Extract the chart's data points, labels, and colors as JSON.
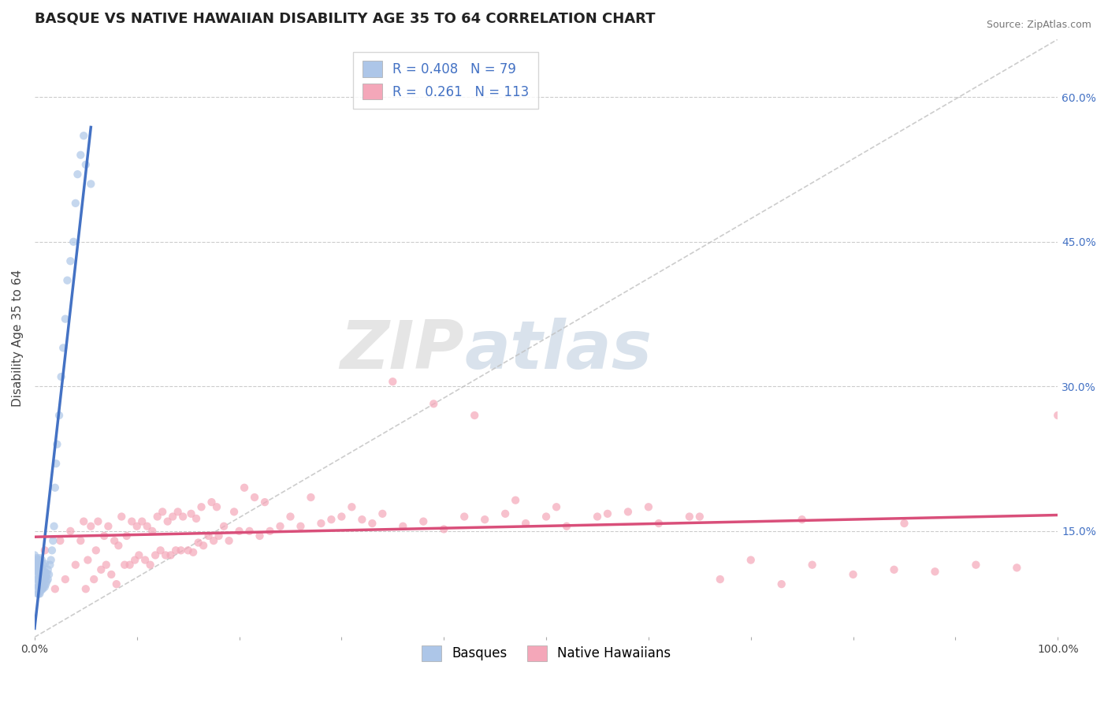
{
  "title": "BASQUE VS NATIVE HAWAIIAN DISABILITY AGE 35 TO 64 CORRELATION CHART",
  "source": "Source: ZipAtlas.com",
  "ylabel": "Disability Age 35 to 64",
  "xlim": [
    0,
    1.0
  ],
  "ylim": [
    0.04,
    0.66
  ],
  "ytick_positions": [
    0.15,
    0.3,
    0.45,
    0.6
  ],
  "ytick_labels": [
    "15.0%",
    "30.0%",
    "45.0%",
    "60.0%"
  ],
  "basque_R": 0.408,
  "basque_N": 79,
  "hawaiian_R": 0.261,
  "hawaiian_N": 113,
  "basque_color": "#adc6e8",
  "basque_line_color": "#4472c4",
  "hawaiian_color": "#f4a7b9",
  "hawaiian_line_color": "#d94f7a",
  "ref_line_color": "#c0c0c0",
  "background_color": "#ffffff",
  "grid_color": "#cccccc",
  "legend_label_blue": "Basques",
  "legend_label_pink": "Native Hawaiians",
  "watermark_zip": "ZIP",
  "watermark_atlas": "atlas",
  "title_fontsize": 13,
  "axis_label_fontsize": 11,
  "tick_fontsize": 10,
  "legend_fontsize": 12,
  "basque_x": [
    0.0,
    0.0,
    0.0,
    0.001,
    0.001,
    0.001,
    0.001,
    0.002,
    0.002,
    0.002,
    0.002,
    0.002,
    0.003,
    0.003,
    0.003,
    0.003,
    0.003,
    0.003,
    0.004,
    0.004,
    0.004,
    0.004,
    0.004,
    0.004,
    0.005,
    0.005,
    0.005,
    0.005,
    0.005,
    0.005,
    0.006,
    0.006,
    0.006,
    0.006,
    0.006,
    0.007,
    0.007,
    0.007,
    0.007,
    0.007,
    0.008,
    0.008,
    0.008,
    0.008,
    0.009,
    0.009,
    0.009,
    0.01,
    0.01,
    0.01,
    0.01,
    0.011,
    0.011,
    0.012,
    0.012,
    0.013,
    0.013,
    0.014,
    0.015,
    0.016,
    0.017,
    0.018,
    0.019,
    0.02,
    0.021,
    0.022,
    0.024,
    0.026,
    0.028,
    0.03,
    0.032,
    0.035,
    0.038,
    0.04,
    0.042,
    0.045,
    0.048,
    0.05,
    0.055
  ],
  "basque_y": [
    0.115,
    0.12,
    0.125,
    0.095,
    0.105,
    0.11,
    0.115,
    0.09,
    0.1,
    0.108,
    0.115,
    0.122,
    0.085,
    0.092,
    0.1,
    0.108,
    0.115,
    0.12,
    0.085,
    0.093,
    0.1,
    0.108,
    0.114,
    0.12,
    0.085,
    0.092,
    0.1,
    0.108,
    0.115,
    0.122,
    0.088,
    0.095,
    0.102,
    0.11,
    0.118,
    0.09,
    0.098,
    0.105,
    0.112,
    0.12,
    0.09,
    0.098,
    0.106,
    0.115,
    0.093,
    0.1,
    0.108,
    0.092,
    0.1,
    0.108,
    0.116,
    0.095,
    0.103,
    0.098,
    0.106,
    0.1,
    0.11,
    0.105,
    0.115,
    0.12,
    0.13,
    0.14,
    0.155,
    0.195,
    0.22,
    0.24,
    0.27,
    0.31,
    0.34,
    0.37,
    0.41,
    0.43,
    0.45,
    0.49,
    0.52,
    0.54,
    0.56,
    0.53,
    0.51
  ],
  "hawaiian_x": [
    0.01,
    0.02,
    0.025,
    0.03,
    0.035,
    0.04,
    0.045,
    0.048,
    0.05,
    0.052,
    0.055,
    0.058,
    0.06,
    0.062,
    0.065,
    0.068,
    0.07,
    0.072,
    0.075,
    0.078,
    0.08,
    0.082,
    0.085,
    0.088,
    0.09,
    0.093,
    0.095,
    0.098,
    0.1,
    0.102,
    0.105,
    0.108,
    0.11,
    0.113,
    0.115,
    0.118,
    0.12,
    0.123,
    0.125,
    0.128,
    0.13,
    0.133,
    0.135,
    0.138,
    0.14,
    0.143,
    0.145,
    0.15,
    0.153,
    0.155,
    0.158,
    0.16,
    0.163,
    0.165,
    0.17,
    0.173,
    0.175,
    0.178,
    0.18,
    0.185,
    0.19,
    0.195,
    0.2,
    0.205,
    0.21,
    0.215,
    0.22,
    0.225,
    0.23,
    0.24,
    0.25,
    0.26,
    0.27,
    0.28,
    0.29,
    0.3,
    0.31,
    0.32,
    0.33,
    0.34,
    0.36,
    0.38,
    0.4,
    0.42,
    0.44,
    0.46,
    0.48,
    0.5,
    0.52,
    0.55,
    0.58,
    0.61,
    0.64,
    0.67,
    0.7,
    0.73,
    0.76,
    0.8,
    0.84,
    0.88,
    0.92,
    0.96,
    1.0,
    0.35,
    0.39,
    0.43,
    0.47,
    0.51,
    0.56,
    0.6,
    0.65,
    0.75,
    0.85
  ],
  "hawaiian_y": [
    0.13,
    0.09,
    0.14,
    0.1,
    0.15,
    0.115,
    0.14,
    0.16,
    0.09,
    0.12,
    0.155,
    0.1,
    0.13,
    0.16,
    0.11,
    0.145,
    0.115,
    0.155,
    0.105,
    0.14,
    0.095,
    0.135,
    0.165,
    0.115,
    0.145,
    0.115,
    0.16,
    0.12,
    0.155,
    0.125,
    0.16,
    0.12,
    0.155,
    0.115,
    0.15,
    0.125,
    0.165,
    0.13,
    0.17,
    0.125,
    0.16,
    0.125,
    0.165,
    0.13,
    0.17,
    0.13,
    0.165,
    0.13,
    0.168,
    0.128,
    0.163,
    0.138,
    0.175,
    0.135,
    0.145,
    0.18,
    0.14,
    0.175,
    0.145,
    0.155,
    0.14,
    0.17,
    0.15,
    0.195,
    0.15,
    0.185,
    0.145,
    0.18,
    0.15,
    0.155,
    0.165,
    0.155,
    0.185,
    0.158,
    0.162,
    0.165,
    0.175,
    0.162,
    0.158,
    0.168,
    0.155,
    0.16,
    0.152,
    0.165,
    0.162,
    0.168,
    0.158,
    0.165,
    0.155,
    0.165,
    0.17,
    0.158,
    0.165,
    0.1,
    0.12,
    0.095,
    0.115,
    0.105,
    0.11,
    0.108,
    0.115,
    0.112,
    0.27,
    0.305,
    0.282,
    0.27,
    0.182,
    0.175,
    0.168,
    0.175,
    0.165,
    0.162,
    0.158
  ]
}
